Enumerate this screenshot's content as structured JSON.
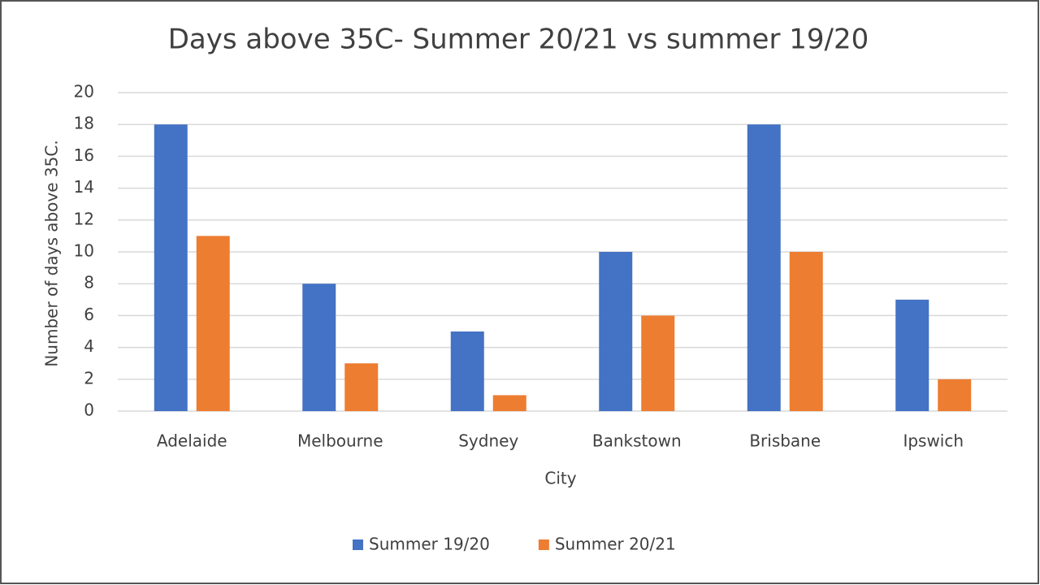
{
  "chart_data": {
    "type": "bar",
    "title": "Days above 35C- Summer 20/21 vs summer 19/20",
    "x_label": "City",
    "y_label": "Number  of days above 35C.",
    "categories": [
      "Adelaide",
      "Melbourne",
      "Sydney",
      "Bankstown",
      "Brisbane",
      "Ipswich"
    ],
    "series": [
      {
        "name": "Summer 19/20",
        "color": "#4472c4",
        "values": [
          18,
          8,
          5,
          10,
          18,
          7
        ]
      },
      {
        "name": "Summer 20/21",
        "color": "#ed7d31",
        "values": [
          11,
          3,
          1,
          6,
          10,
          2
        ]
      }
    ],
    "ylim": [
      0,
      20
    ],
    "yticks": [
      0,
      2,
      4,
      6,
      8,
      10,
      12,
      14,
      16,
      18,
      20
    ],
    "grid": true,
    "legend": "bottom"
  }
}
